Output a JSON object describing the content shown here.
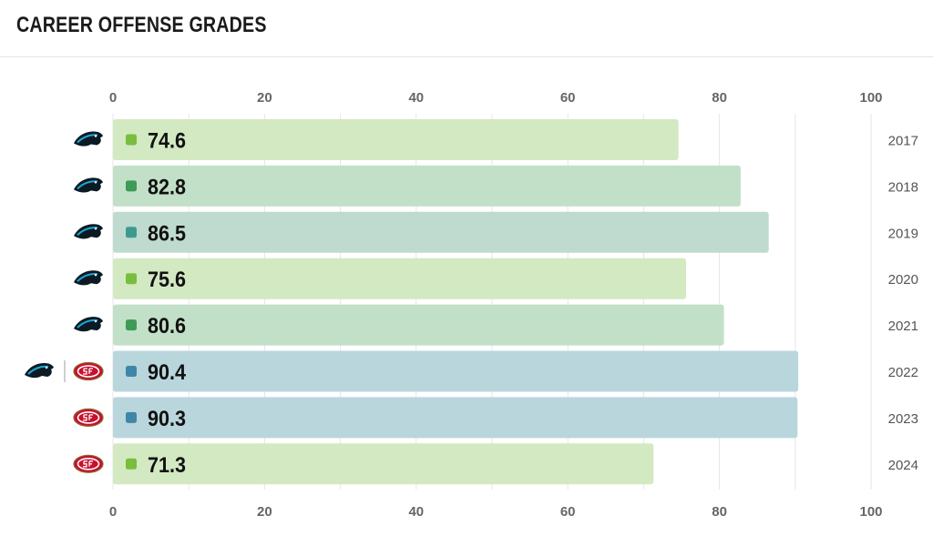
{
  "title": "CAREER OFFENSE GRADES",
  "colors": {
    "grid": "#e6e6e6",
    "elite_light": "#b9d6dd",
    "elite_dot": "#3f86a8",
    "high_light": "#bfdbcf",
    "high_dot": "#3f9a8e",
    "good_light": "#c2e0c8",
    "good_dot": "#3e9a57",
    "avg_light": "#d2e9c2",
    "avg_dot": "#79bd3f"
  },
  "chart_data": {
    "type": "bar",
    "orientation": "horizontal",
    "title": "CAREER OFFENSE GRADES",
    "xlim": [
      0,
      100
    ],
    "xticks": [
      "0",
      "20",
      "40",
      "60",
      "80",
      "100"
    ],
    "grid": true,
    "rows": [
      {
        "year": "2017",
        "value": 74.6,
        "label": "74.6",
        "bar_color": "#d2e9c2",
        "dot_color": "#79bd3f",
        "teams": [
          "panthers-logo"
        ]
      },
      {
        "year": "2018",
        "value": 82.8,
        "label": "82.8",
        "bar_color": "#c2e0c8",
        "dot_color": "#3e9a57",
        "teams": [
          "panthers-logo"
        ]
      },
      {
        "year": "2019",
        "value": 86.5,
        "label": "86.5",
        "bar_color": "#bfdbcf",
        "dot_color": "#3f9a8e",
        "teams": [
          "panthers-logo"
        ]
      },
      {
        "year": "2020",
        "value": 75.6,
        "label": "75.6",
        "bar_color": "#d2e9c2",
        "dot_color": "#79bd3f",
        "teams": [
          "panthers-logo"
        ]
      },
      {
        "year": "2021",
        "value": 80.6,
        "label": "80.6",
        "bar_color": "#c2e0c8",
        "dot_color": "#3e9a57",
        "teams": [
          "panthers-logo"
        ]
      },
      {
        "year": "2022",
        "value": 90.4,
        "label": "90.4",
        "bar_color": "#b9d6dd",
        "dot_color": "#3f86a8",
        "teams": [
          "panthers-logo",
          "49ers-logo"
        ]
      },
      {
        "year": "2023",
        "value": 90.3,
        "label": "90.3",
        "bar_color": "#b9d6dd",
        "dot_color": "#3f86a8",
        "teams": [
          "49ers-logo"
        ]
      },
      {
        "year": "2024",
        "value": 71.3,
        "label": "71.3",
        "bar_color": "#d2e9c2",
        "dot_color": "#79bd3f",
        "teams": [
          "49ers-logo"
        ]
      }
    ]
  }
}
